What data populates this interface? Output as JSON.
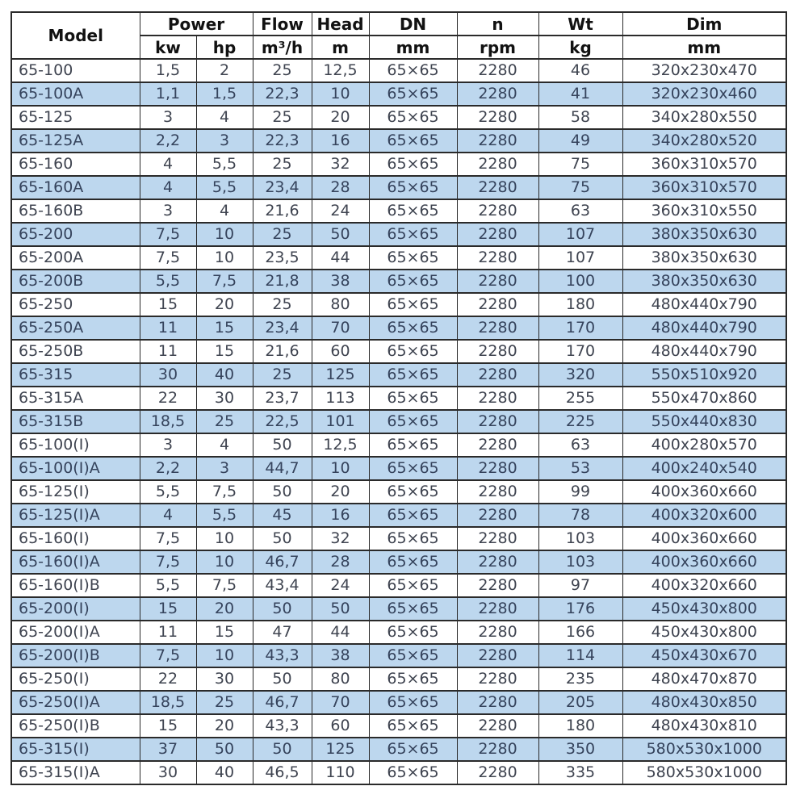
{
  "colors": {
    "alt_row_bg": "#BDD7EE",
    "row_bg": "#FFFFFF",
    "border": "#2A2A2A",
    "text": "#3F4450",
    "alt_text": "#35435C",
    "header_text": "#121212"
  },
  "table": {
    "header": {
      "model": "Model",
      "power": "Power",
      "flow": "Flow",
      "head": "Head",
      "dn": "DN",
      "n": "n",
      "wt": "Wt",
      "dim": "Dim",
      "units": [
        "kw",
        "hp",
        "m³/h",
        "m",
        "mm",
        "rpm",
        "kg",
        "mm"
      ]
    },
    "rows": [
      [
        "65-100",
        "1,5",
        "2",
        "25",
        "12,5",
        "65×65",
        "2280",
        "46",
        "320x230x470"
      ],
      [
        "65-100A",
        "1,1",
        "1,5",
        "22,3",
        "10",
        "65×65",
        "2280",
        "41",
        "320x230x460"
      ],
      [
        "65-125",
        "3",
        "4",
        "25",
        "20",
        "65×65",
        "2280",
        "58",
        "340x280x550"
      ],
      [
        "65-125A",
        "2,2",
        "3",
        "22,3",
        "16",
        "65×65",
        "2280",
        "49",
        "340x280x520"
      ],
      [
        "65-160",
        "4",
        "5,5",
        "25",
        "32",
        "65×65",
        "2280",
        "75",
        "360x310x570"
      ],
      [
        "65-160A",
        "4",
        "5,5",
        "23,4",
        "28",
        "65×65",
        "2280",
        "75",
        "360x310x570"
      ],
      [
        "65-160B",
        "3",
        "4",
        "21,6",
        "24",
        "65×65",
        "2280",
        "63",
        "360x310x550"
      ],
      [
        "65-200",
        "7,5",
        "10",
        "25",
        "50",
        "65×65",
        "2280",
        "107",
        "380x350x630"
      ],
      [
        "65-200A",
        "7,5",
        "10",
        "23,5",
        "44",
        "65×65",
        "2280",
        "107",
        "380x350x630"
      ],
      [
        "65-200B",
        "5,5",
        "7,5",
        "21,8",
        "38",
        "65×65",
        "2280",
        "100",
        "380x350x630"
      ],
      [
        "65-250",
        "15",
        "20",
        "25",
        "80",
        "65×65",
        "2280",
        "180",
        "480x440x790"
      ],
      [
        "65-250A",
        "11",
        "15",
        "23,4",
        "70",
        "65×65",
        "2280",
        "170",
        "480x440x790"
      ],
      [
        "65-250B",
        "11",
        "15",
        "21,6",
        "60",
        "65×65",
        "2280",
        "170",
        "480x440x790"
      ],
      [
        "65-315",
        "30",
        "40",
        "25",
        "125",
        "65×65",
        "2280",
        "320",
        "550x510x920"
      ],
      [
        "65-315A",
        "22",
        "30",
        "23,7",
        "113",
        "65×65",
        "2280",
        "255",
        "550x470x860"
      ],
      [
        "65-315B",
        "18,5",
        "25",
        "22,5",
        "101",
        "65×65",
        "2280",
        "225",
        "550x440x830"
      ],
      [
        "65-100(I)",
        "3",
        "4",
        "50",
        "12,5",
        "65×65",
        "2280",
        "63",
        "400x280x570"
      ],
      [
        "65-100(I)A",
        "2,2",
        "3",
        "44,7",
        "10",
        "65×65",
        "2280",
        "53",
        "400x240x540"
      ],
      [
        "65-125(I)",
        "5,5",
        "7,5",
        "50",
        "20",
        "65×65",
        "2280",
        "99",
        "400x360x660"
      ],
      [
        "65-125(I)A",
        "4",
        "5,5",
        "45",
        "16",
        "65×65",
        "2280",
        "78",
        "400x320x600"
      ],
      [
        "65-160(I)",
        "7,5",
        "10",
        "50",
        "32",
        "65×65",
        "2280",
        "103",
        "400x360x660"
      ],
      [
        "65-160(I)A",
        "7,5",
        "10",
        "46,7",
        "28",
        "65×65",
        "2280",
        "103",
        "400x360x660"
      ],
      [
        "65-160(I)B",
        "5,5",
        "7,5",
        "43,4",
        "24",
        "65×65",
        "2280",
        "97",
        "400x320x660"
      ],
      [
        "65-200(I)",
        "15",
        "20",
        "50",
        "50",
        "65×65",
        "2280",
        "176",
        "450x430x800"
      ],
      [
        "65-200(I)A",
        "11",
        "15",
        "47",
        "44",
        "65×65",
        "2280",
        "166",
        "450x430x800"
      ],
      [
        "65-200(I)B",
        "7,5",
        "10",
        "43,3",
        "38",
        "65×65",
        "2280",
        "114",
        "450x430x670"
      ],
      [
        "65-250(I)",
        "22",
        "30",
        "50",
        "80",
        "65×65",
        "2280",
        "235",
        "480x470x870"
      ],
      [
        "65-250(I)A",
        "18,5",
        "25",
        "46,7",
        "70",
        "65×65",
        "2280",
        "205",
        "480x430x850"
      ],
      [
        "65-250(I)B",
        "15",
        "20",
        "43,3",
        "60",
        "65×65",
        "2280",
        "180",
        "480x430x810"
      ],
      [
        "65-315(I)",
        "37",
        "50",
        "50",
        "125",
        "65×65",
        "2280",
        "350",
        "580x530x1000"
      ],
      [
        "65-315(I)A",
        "30",
        "40",
        "46,5",
        "110",
        "65×65",
        "2280",
        "335",
        "580x530x1000"
      ]
    ]
  }
}
